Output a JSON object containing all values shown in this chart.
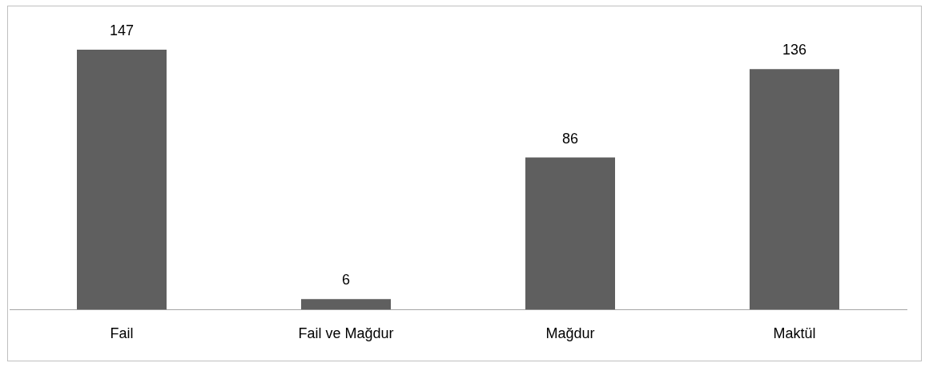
{
  "chart_data": {
    "type": "bar",
    "categories": [
      "Fail",
      "Fail ve Mağdur",
      "Mağdur",
      "Maktül"
    ],
    "values": [
      147,
      6,
      86,
      136
    ],
    "color": "#5f5f5f",
    "data_labels": true
  }
}
